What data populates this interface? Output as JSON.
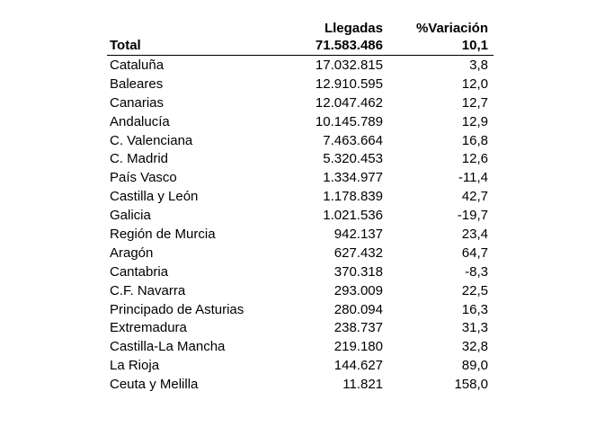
{
  "header": {
    "arrivals_label": "Llegadas",
    "variation_label": "%Variación"
  },
  "total": {
    "name": "Total",
    "arrivals": "71.583.486",
    "variation": "10,1"
  },
  "rows": [
    {
      "name": "Cataluña",
      "arrivals": "17.032.815",
      "variation": "3,8"
    },
    {
      "name": "Baleares",
      "arrivals": "12.910.595",
      "variation": "12,0"
    },
    {
      "name": "Canarias",
      "arrivals": "12.047.462",
      "variation": "12,7"
    },
    {
      "name": "Andalucía",
      "arrivals": "10.145.789",
      "variation": "12,9"
    },
    {
      "name": "C. Valenciana",
      "arrivals": "7.463.664",
      "variation": "16,8"
    },
    {
      "name": "C. Madrid",
      "arrivals": "5.320.453",
      "variation": "12,6"
    },
    {
      "name": "País Vasco",
      "arrivals": "1.334.977",
      "variation": "-11,4"
    },
    {
      "name": "Castilla y León",
      "arrivals": "1.178.839",
      "variation": "42,7"
    },
    {
      "name": "Galicia",
      "arrivals": "1.021.536",
      "variation": "-19,7"
    },
    {
      "name": "Región de Murcia",
      "arrivals": "942.137",
      "variation": "23,4"
    },
    {
      "name": "Aragón",
      "arrivals": "627.432",
      "variation": "64,7"
    },
    {
      "name": "Cantabria",
      "arrivals": "370.318",
      "variation": "-8,3"
    },
    {
      "name": "C.F. Navarra",
      "arrivals": "293.009",
      "variation": "22,5"
    },
    {
      "name": "Principado de Asturias",
      "arrivals": "280.094",
      "variation": "16,3"
    },
    {
      "name": "Extremadura",
      "arrivals": "238.737",
      "variation": "31,3"
    },
    {
      "name": "Castilla-La Mancha",
      "arrivals": "219.180",
      "variation": "32,8"
    },
    {
      "name": "La Rioja",
      "arrivals": "144.627",
      "variation": "89,0"
    },
    {
      "name": "Ceuta y Melilla",
      "arrivals": "11.821",
      "variation": "158,0"
    }
  ]
}
